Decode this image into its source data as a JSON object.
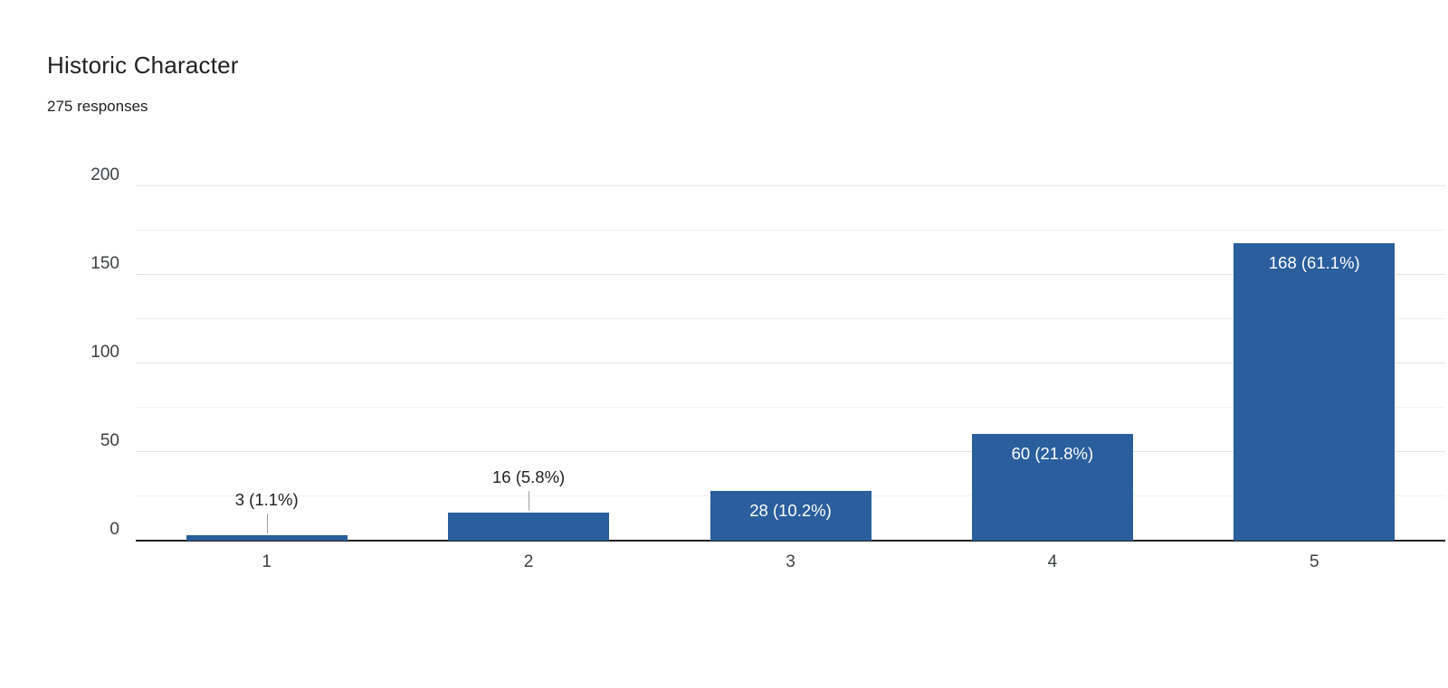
{
  "header": {
    "title": "Historic Character",
    "subtitle": "275 responses"
  },
  "chart_data": {
    "type": "bar",
    "title": "Historic Character",
    "subtitle": "275 responses",
    "categories": [
      "1",
      "2",
      "3",
      "4",
      "5"
    ],
    "values": [
      3,
      16,
      28,
      60,
      168
    ],
    "bar_labels": [
      "3 (1.1%)",
      "16 (5.8%)",
      "28 (10.2%)",
      "60 (21.8%)",
      "168 (61.1%)"
    ],
    "label_placement": [
      "outside",
      "outside",
      "inside",
      "inside",
      "inside"
    ],
    "xlabel": "",
    "ylabel": "",
    "ylim": [
      0,
      200
    ],
    "yticks": [
      0,
      50,
      100,
      150,
      200
    ],
    "minor_grid_step": 25,
    "grid": true,
    "legend_position": "none",
    "bar_color": "#2a5e9c",
    "axis_color": "#212121",
    "tick_label_color": "#3c4043",
    "outside_label_color": "#202124",
    "inside_label_color": "#ffffff"
  }
}
